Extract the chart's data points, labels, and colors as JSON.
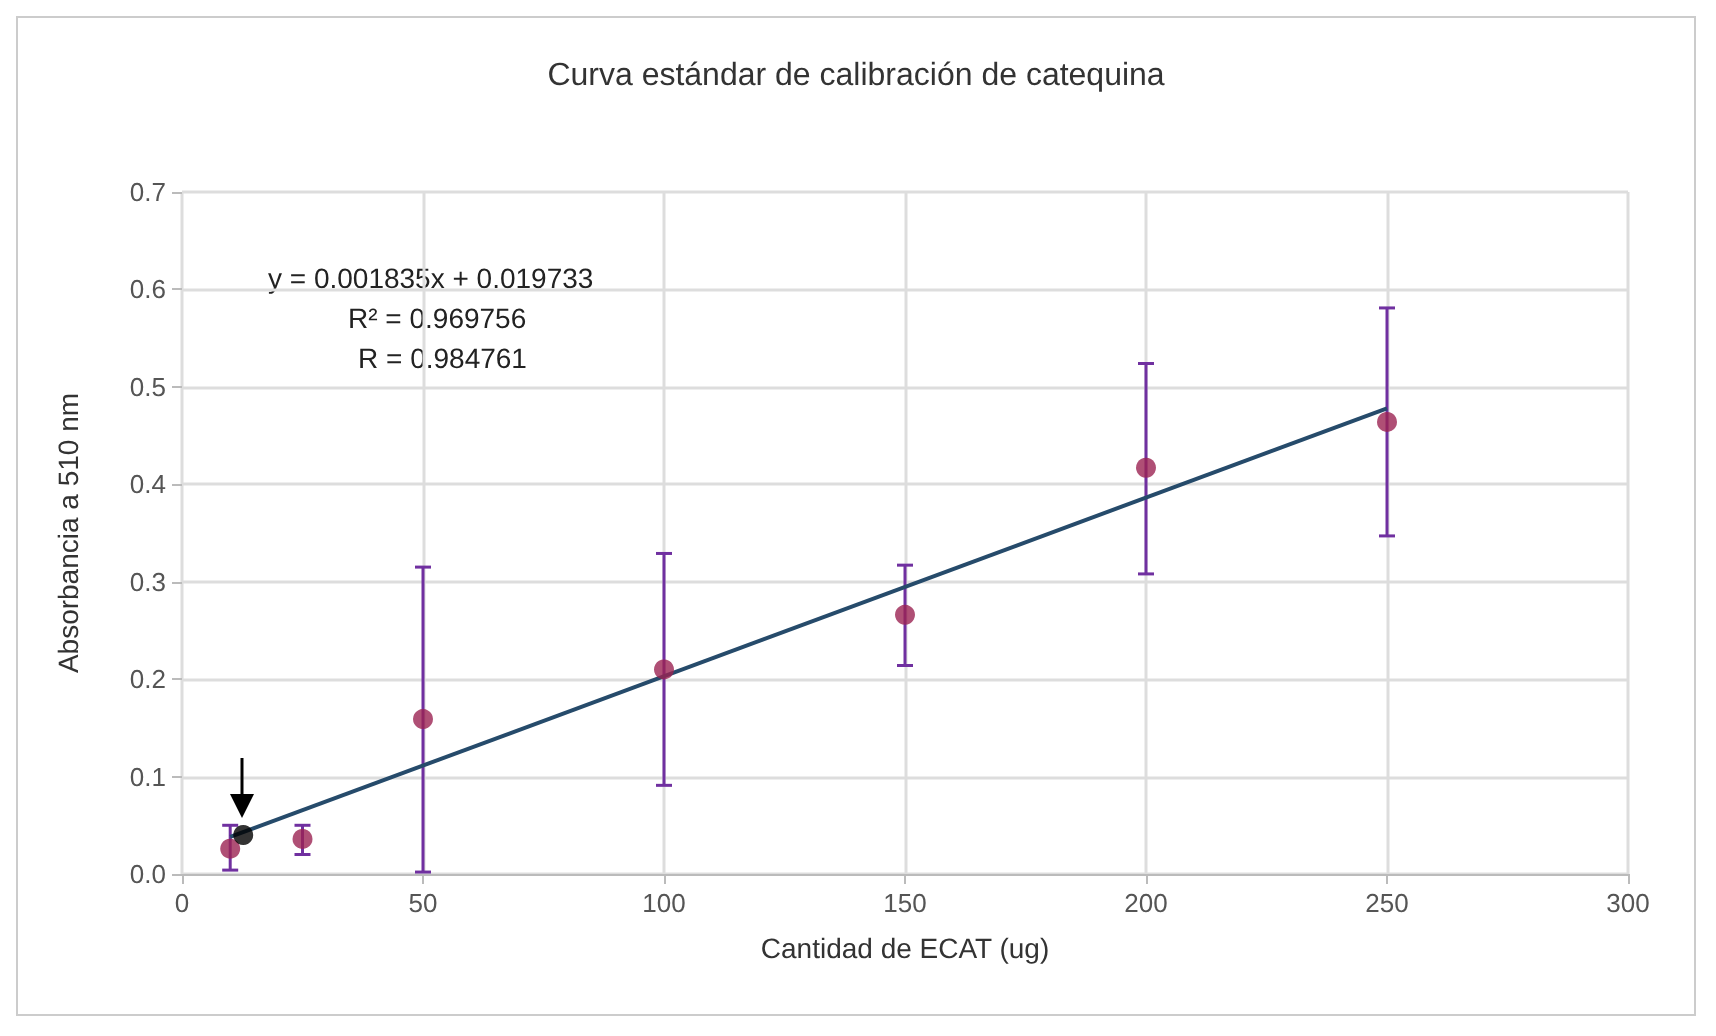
{
  "chart_data": {
    "type": "scatter",
    "title": "Curva estándar de calibración de catequina",
    "xlabel": "Cantidad de ECAT (ug)",
    "ylabel": "Absorbancia a 510 nm",
    "xlim": [
      0,
      300
    ],
    "xticks": [
      0,
      50,
      100,
      150,
      200,
      250,
      300
    ],
    "ylim": [
      0,
      0.7
    ],
    "yticks": [
      {
        "value": 0,
        "label": "0.0"
      },
      0.1,
      0.2,
      0.3,
      0.4,
      0.5,
      0.6,
      0.7
    ],
    "grid": true,
    "marker": "circle",
    "annotations": [
      "y = 0.001835x + 0.019733",
      "R² = 0.969756",
      "R = 0.984761"
    ],
    "series": [
      {
        "color": "#9b2352",
        "x": [
          10,
          25,
          50,
          100,
          150,
          200,
          250
        ],
        "values": [
          0.026,
          0.036,
          0.159,
          0.21,
          0.266,
          0.417,
          0.464
        ],
        "errors": [
          [
            0.004,
            0.05
          ],
          [
            0.02,
            0.05
          ],
          [
            0.002,
            0.315
          ],
          [
            0.091,
            0.329
          ],
          [
            0.214,
            0.317
          ],
          [
            0.308,
            0.524
          ],
          [
            0.347,
            0.581
          ]
        ]
      },
      {
        "type": "line",
        "color": "#264b6b",
        "x": [
          10,
          250
        ],
        "values": [
          0.038,
          0.478
        ],
        "marker": "none"
      },
      {
        "color": "#000000",
        "x": [
          12.7
        ],
        "values": [
          0.04
        ]
      }
    ]
  }
}
